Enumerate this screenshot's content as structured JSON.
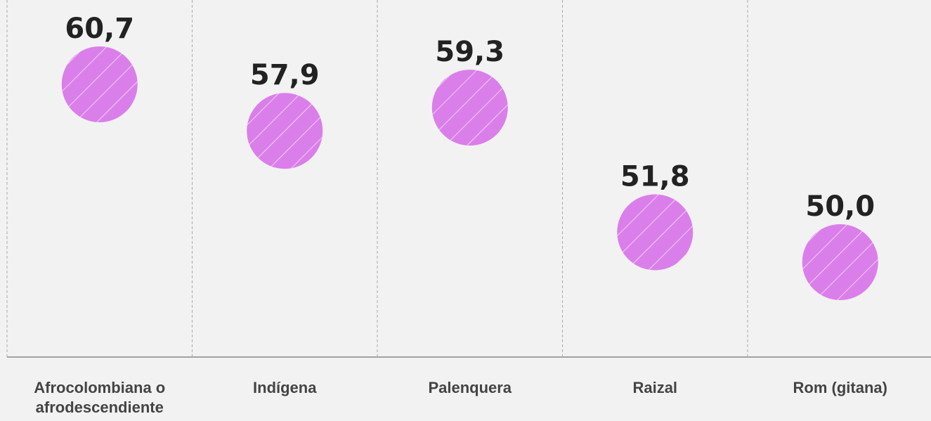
{
  "chart_data": {
    "type": "dot",
    "categories": [
      "Afrocolombiana o afrodescendiente",
      "Indígena",
      "Palenquera",
      "Raizal",
      "Rom (gitana)"
    ],
    "values": [
      60.7,
      57.9,
      59.3,
      51.8,
      50.0
    ],
    "value_labels": [
      "60,7",
      "57,9",
      "59,3",
      "51,8",
      "50,0"
    ],
    "color": "#da7fea"
  }
}
